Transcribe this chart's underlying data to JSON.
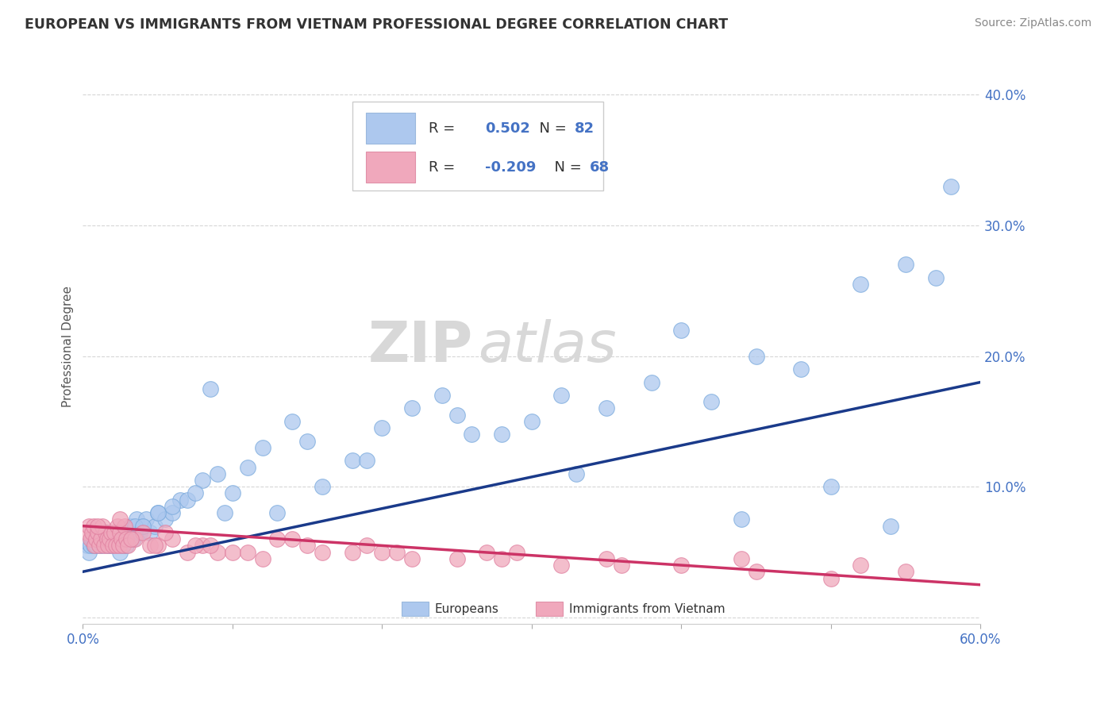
{
  "title": "EUROPEAN VS IMMIGRANTS FROM VIETNAM PROFESSIONAL DEGREE CORRELATION CHART",
  "source": "Source: ZipAtlas.com",
  "ylabel": "Professional Degree",
  "xlim": [
    0.0,
    60.0
  ],
  "ylim": [
    -0.5,
    42.0
  ],
  "yticks": [
    0.0,
    10.0,
    20.0,
    30.0,
    40.0
  ],
  "ytick_labels": [
    "",
    "10.0%",
    "20.0%",
    "30.0%",
    "40.0%"
  ],
  "xticks": [
    0.0,
    10.0,
    20.0,
    30.0,
    40.0,
    50.0,
    60.0
  ],
  "blue_color": "#adc8ee",
  "pink_color": "#f0a8bc",
  "blue_line_color": "#1a3a8a",
  "pink_line_color": "#cc3366",
  "background_color": "#ffffff",
  "watermark_zip": "ZIP",
  "watermark_atlas": "atlas",
  "blue_x": [
    0.3,
    0.4,
    0.5,
    0.6,
    0.7,
    0.8,
    0.9,
    1.0,
    1.1,
    1.2,
    1.3,
    1.4,
    1.5,
    1.6,
    1.7,
    1.8,
    1.9,
    2.0,
    2.1,
    2.2,
    2.3,
    2.4,
    2.5,
    2.6,
    2.7,
    2.8,
    2.9,
    3.0,
    3.2,
    3.4,
    3.6,
    3.8,
    4.0,
    4.2,
    4.5,
    4.8,
    5.0,
    5.5,
    6.0,
    6.5,
    7.0,
    8.0,
    9.0,
    10.0,
    11.0,
    12.0,
    14.0,
    16.0,
    18.0,
    20.0,
    22.0,
    25.0,
    28.0,
    30.0,
    32.0,
    35.0,
    38.0,
    42.0,
    45.0,
    48.0,
    52.0,
    55.0,
    58.0,
    3.5,
    5.0,
    7.5,
    15.0,
    24.0,
    40.0,
    50.0,
    57.0,
    4.0,
    6.0,
    9.5,
    13.0,
    19.0,
    26.0,
    33.0,
    44.0,
    54.0,
    8.5
  ],
  "blue_y": [
    5.5,
    5.0,
    5.5,
    6.0,
    5.5,
    6.0,
    5.5,
    6.0,
    5.5,
    6.0,
    5.5,
    6.0,
    6.5,
    5.5,
    6.0,
    5.5,
    6.0,
    5.5,
    6.0,
    6.5,
    6.0,
    5.5,
    5.0,
    6.0,
    5.5,
    6.0,
    5.5,
    6.5,
    7.0,
    6.0,
    7.5,
    6.5,
    7.0,
    7.5,
    6.5,
    7.0,
    8.0,
    7.5,
    8.0,
    9.0,
    9.0,
    10.5,
    11.0,
    9.5,
    11.5,
    13.0,
    15.0,
    10.0,
    12.0,
    14.5,
    16.0,
    15.5,
    14.0,
    15.0,
    17.0,
    16.0,
    18.0,
    16.5,
    20.0,
    19.0,
    25.5,
    27.0,
    33.0,
    7.0,
    8.0,
    9.5,
    13.5,
    17.0,
    22.0,
    10.0,
    26.0,
    7.0,
    8.5,
    8.0,
    8.0,
    12.0,
    14.0,
    11.0,
    7.5,
    7.0,
    17.5
  ],
  "pink_x": [
    0.3,
    0.4,
    0.5,
    0.6,
    0.7,
    0.8,
    0.9,
    1.0,
    1.1,
    1.2,
    1.3,
    1.4,
    1.5,
    1.6,
    1.7,
    1.8,
    1.9,
    2.0,
    2.1,
    2.2,
    2.3,
    2.4,
    2.5,
    2.6,
    2.7,
    2.8,
    2.9,
    3.0,
    3.5,
    4.0,
    4.5,
    5.0,
    6.0,
    7.0,
    8.0,
    9.0,
    10.0,
    12.0,
    14.0,
    16.0,
    18.0,
    20.0,
    22.0,
    25.0,
    28.0,
    32.0,
    36.0,
    40.0,
    45.0,
    50.0,
    55.0,
    3.2,
    4.8,
    7.5,
    11.0,
    15.0,
    21.0,
    27.0,
    35.0,
    44.0,
    52.0,
    1.0,
    2.5,
    5.5,
    8.5,
    13.0,
    19.0,
    29.0
  ],
  "pink_y": [
    6.5,
    7.0,
    6.0,
    6.5,
    7.0,
    5.5,
    6.0,
    6.5,
    5.5,
    6.0,
    7.0,
    5.5,
    6.5,
    6.0,
    5.5,
    6.0,
    6.5,
    5.5,
    6.5,
    5.5,
    7.0,
    5.5,
    6.5,
    6.0,
    5.5,
    7.0,
    6.0,
    5.5,
    6.0,
    6.5,
    5.5,
    5.5,
    6.0,
    5.0,
    5.5,
    5.0,
    5.0,
    4.5,
    6.0,
    5.0,
    5.0,
    5.0,
    4.5,
    4.5,
    4.5,
    4.0,
    4.0,
    4.0,
    3.5,
    3.0,
    3.5,
    6.0,
    5.5,
    5.5,
    5.0,
    5.5,
    5.0,
    5.0,
    4.5,
    4.5,
    4.0,
    7.0,
    7.5,
    6.5,
    5.5,
    6.0,
    5.5,
    5.0
  ],
  "blue_line_x0": 0.0,
  "blue_line_y0": 3.5,
  "blue_line_x1": 60.0,
  "blue_line_y1": 18.0,
  "pink_line_x0": 0.0,
  "pink_line_y0": 7.0,
  "pink_line_x1": 60.0,
  "pink_line_y1": 2.5
}
